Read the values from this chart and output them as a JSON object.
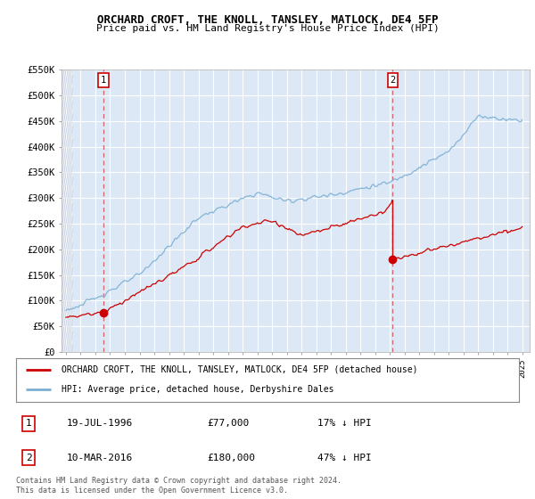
{
  "title": "ORCHARD CROFT, THE KNOLL, TANSLEY, MATLOCK, DE4 5FP",
  "subtitle": "Price paid vs. HM Land Registry's House Price Index (HPI)",
  "legend_label_red": "ORCHARD CROFT, THE KNOLL, TANSLEY, MATLOCK, DE4 5FP (detached house)",
  "legend_label_blue": "HPI: Average price, detached house, Derbyshire Dales",
  "sale1_date": "19-JUL-1996",
  "sale1_price": 77000,
  "sale1_hpi": "17% ↓ HPI",
  "sale2_date": "10-MAR-2016",
  "sale2_price": 180000,
  "sale2_hpi": "47% ↓ HPI",
  "sale1_year": 1996.54,
  "sale2_year": 2016.19,
  "footer": "Contains HM Land Registry data © Crown copyright and database right 2024.\nThis data is licensed under the Open Government Licence v3.0.",
  "ylim": [
    0,
    550000
  ],
  "yticks": [
    0,
    50000,
    100000,
    150000,
    200000,
    250000,
    300000,
    350000,
    400000,
    450000,
    500000,
    550000
  ],
  "xmin": 1993.7,
  "xmax": 2025.5,
  "plot_bg_color": "#dce8f5",
  "hatch_color": "#c0c8d8",
  "red_color": "#cc0000",
  "blue_color": "#7bafd4",
  "grid_color": "#ffffff"
}
